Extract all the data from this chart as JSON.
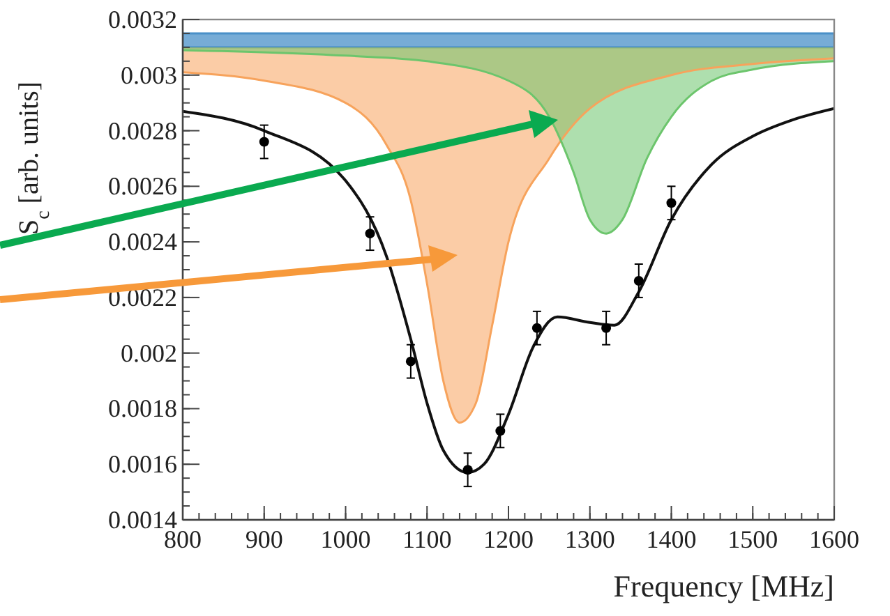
{
  "chart_data": {
    "type": "scatter",
    "xlabel": "Frequency [MHz]",
    "ylabel": "S$_{c}$ [arb. units]",
    "xlim": [
      800,
      1600
    ],
    "xticks": [
      800,
      900,
      1000,
      1100,
      1200,
      1300,
      1400,
      1500,
      1600
    ],
    "ylim": [
      0.0014,
      0.0032
    ],
    "yticks": [
      0.0014,
      0.0016,
      0.0018,
      0.002,
      0.0022,
      0.0024,
      0.0026,
      0.0028,
      0.003,
      0.0032
    ],
    "grid": false,
    "bands": [
      {
        "axis": "y",
        "from": 0.0031,
        "to": 0.00315,
        "color": "#4a90c8"
      }
    ],
    "series": [
      {
        "type": "line",
        "color": "#f7a35c",
        "x": [
          800,
          900,
          1000,
          1050,
          1080,
          1100,
          1120,
          1140,
          1160,
          1180,
          1200,
          1250,
          1300,
          1400,
          1500,
          1600
        ],
        "values": [
          0.00301,
          0.00298,
          0.0029,
          0.00275,
          0.00255,
          0.00225,
          0.0019,
          0.00175,
          0.00182,
          0.0021,
          0.0024,
          0.0027,
          0.00288,
          0.003,
          0.00304,
          0.00306
        ],
        "lower": [
          0.00301,
          0.00298,
          0.0029,
          0.00275,
          0.00255,
          0.00225,
          0.0019,
          0.00175,
          0.00182,
          0.0021,
          0.0024,
          0.0027,
          0.00288,
          0.003,
          0.00304,
          0.00306
        ],
        "upper": [
          0.0031,
          0.0031,
          0.0031,
          0.0031,
          0.0031,
          0.0031,
          0.0031,
          0.0031,
          0.0031,
          0.0031,
          0.0031,
          0.0031,
          0.0031,
          0.0031,
          0.0031,
          0.0031
        ]
      },
      {
        "type": "line",
        "color": "#6cc56c",
        "x": [
          800,
          1000,
          1100,
          1200,
          1250,
          1280,
          1300,
          1320,
          1340,
          1370,
          1400,
          1450,
          1500,
          1600
        ],
        "values": [
          0.00309,
          0.00307,
          0.00305,
          0.00298,
          0.00285,
          0.00265,
          0.00248,
          0.00243,
          0.00248,
          0.0027,
          0.00285,
          0.00298,
          0.00302,
          0.00305
        ],
        "lower": [
          0.00309,
          0.00307,
          0.00305,
          0.00298,
          0.00285,
          0.00265,
          0.00248,
          0.00243,
          0.00248,
          0.0027,
          0.00285,
          0.00298,
          0.00302,
          0.00305
        ],
        "upper": [
          0.0031,
          0.0031,
          0.0031,
          0.0031,
          0.0031,
          0.0031,
          0.0031,
          0.0031,
          0.0031,
          0.0031,
          0.0031,
          0.0031,
          0.0031,
          0.0031
        ]
      },
      {
        "type": "line",
        "color": "#111111",
        "x": [
          800,
          900,
          1000,
          1050,
          1080,
          1100,
          1120,
          1150,
          1170,
          1200,
          1230,
          1260,
          1300,
          1330,
          1360,
          1400,
          1450,
          1500,
          1550,
          1600
        ],
        "values": [
          0.00287,
          0.0028,
          0.00262,
          0.00235,
          0.00205,
          0.00182,
          0.00165,
          0.00157,
          0.0016,
          0.00178,
          0.00202,
          0.00213,
          0.00211,
          0.0021,
          0.00222,
          0.00248,
          0.00268,
          0.00278,
          0.00284,
          0.00288
        ]
      },
      {
        "color": "#000000",
        "marker": "circle",
        "x": [
          900,
          1030,
          1080,
          1150,
          1190,
          1235,
          1320,
          1360,
          1400
        ],
        "values": [
          0.00276,
          0.00243,
          0.00197,
          0.00158,
          0.00172,
          0.00209,
          0.00209,
          0.00226,
          0.00254
        ],
        "errors": [
          6e-05,
          6e-05,
          6e-05,
          6e-05,
          6e-05,
          6e-05,
          6e-05,
          6e-05,
          6e-05
        ]
      }
    ]
  }
}
